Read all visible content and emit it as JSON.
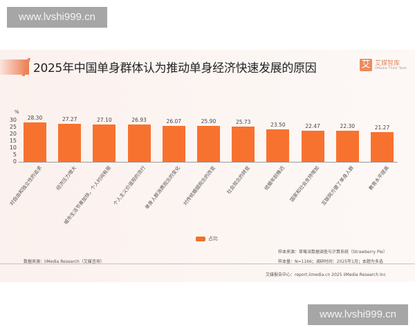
{
  "watermarks": {
    "top": "www.lvshi999.cn",
    "bottom": "www.lvshi999.cn"
  },
  "header": {
    "title": "2025年中国单身群体认为推动单身经济快速发展的原因",
    "logo_mark": "艾",
    "logo_name": "艾媒智库",
    "logo_sub": "iiMedia Think Tank"
  },
  "legend": {
    "label": "占比",
    "color": "#f0702c"
  },
  "notes": {
    "data_source": "数据来源：iiMedia Research（艾媒咨询）",
    "sample_source": "样本来源：草莓派数据调查与计算系统（Strawberry Pie）",
    "sample_size": "样本量：N=1166；调研时间：2025年1月；本题为多选",
    "footer": "艾媒报告中心：report.iimedia.cn    2025 iiMedia Research Inc"
  },
  "chart_data": {
    "type": "bar",
    "title": "2025年中国单身群体认为推动单身经济快速发展的原因",
    "xlabel": "",
    "ylabel": "%",
    "ylim": [
      0,
      30
    ],
    "yticks": [
      "30",
      "25",
      "20",
      "15",
      "10",
      "5",
      "0"
    ],
    "grid": false,
    "legend_position": "bottom",
    "bar_color": "#f8722f",
    "categories": [
      "对自由和独立性的追求",
      "经济压力增大",
      "城市生活节奏加快，个人时间有限",
      "个人主义价值观的流行",
      "单身人群消费观念的变化",
      "对传统婚姻观念的改变",
      "社会观念的转变",
      "结婚年龄推迟",
      "国家和社会支持增加",
      "互联网方便了单身人群",
      "教育水平提高"
    ],
    "series": [
      {
        "name": "占比",
        "values": [
          28.3,
          27.27,
          27.1,
          26.93,
          26.07,
          25.9,
          25.73,
          23.5,
          22.47,
          22.3,
          21.27
        ]
      }
    ],
    "value_labels": [
      "28.30",
      "27.27",
      "27.10",
      "26.93",
      "26.07",
      "25.90",
      "25.73",
      "23.50",
      "22.47",
      "22.30",
      "21.27"
    ]
  }
}
